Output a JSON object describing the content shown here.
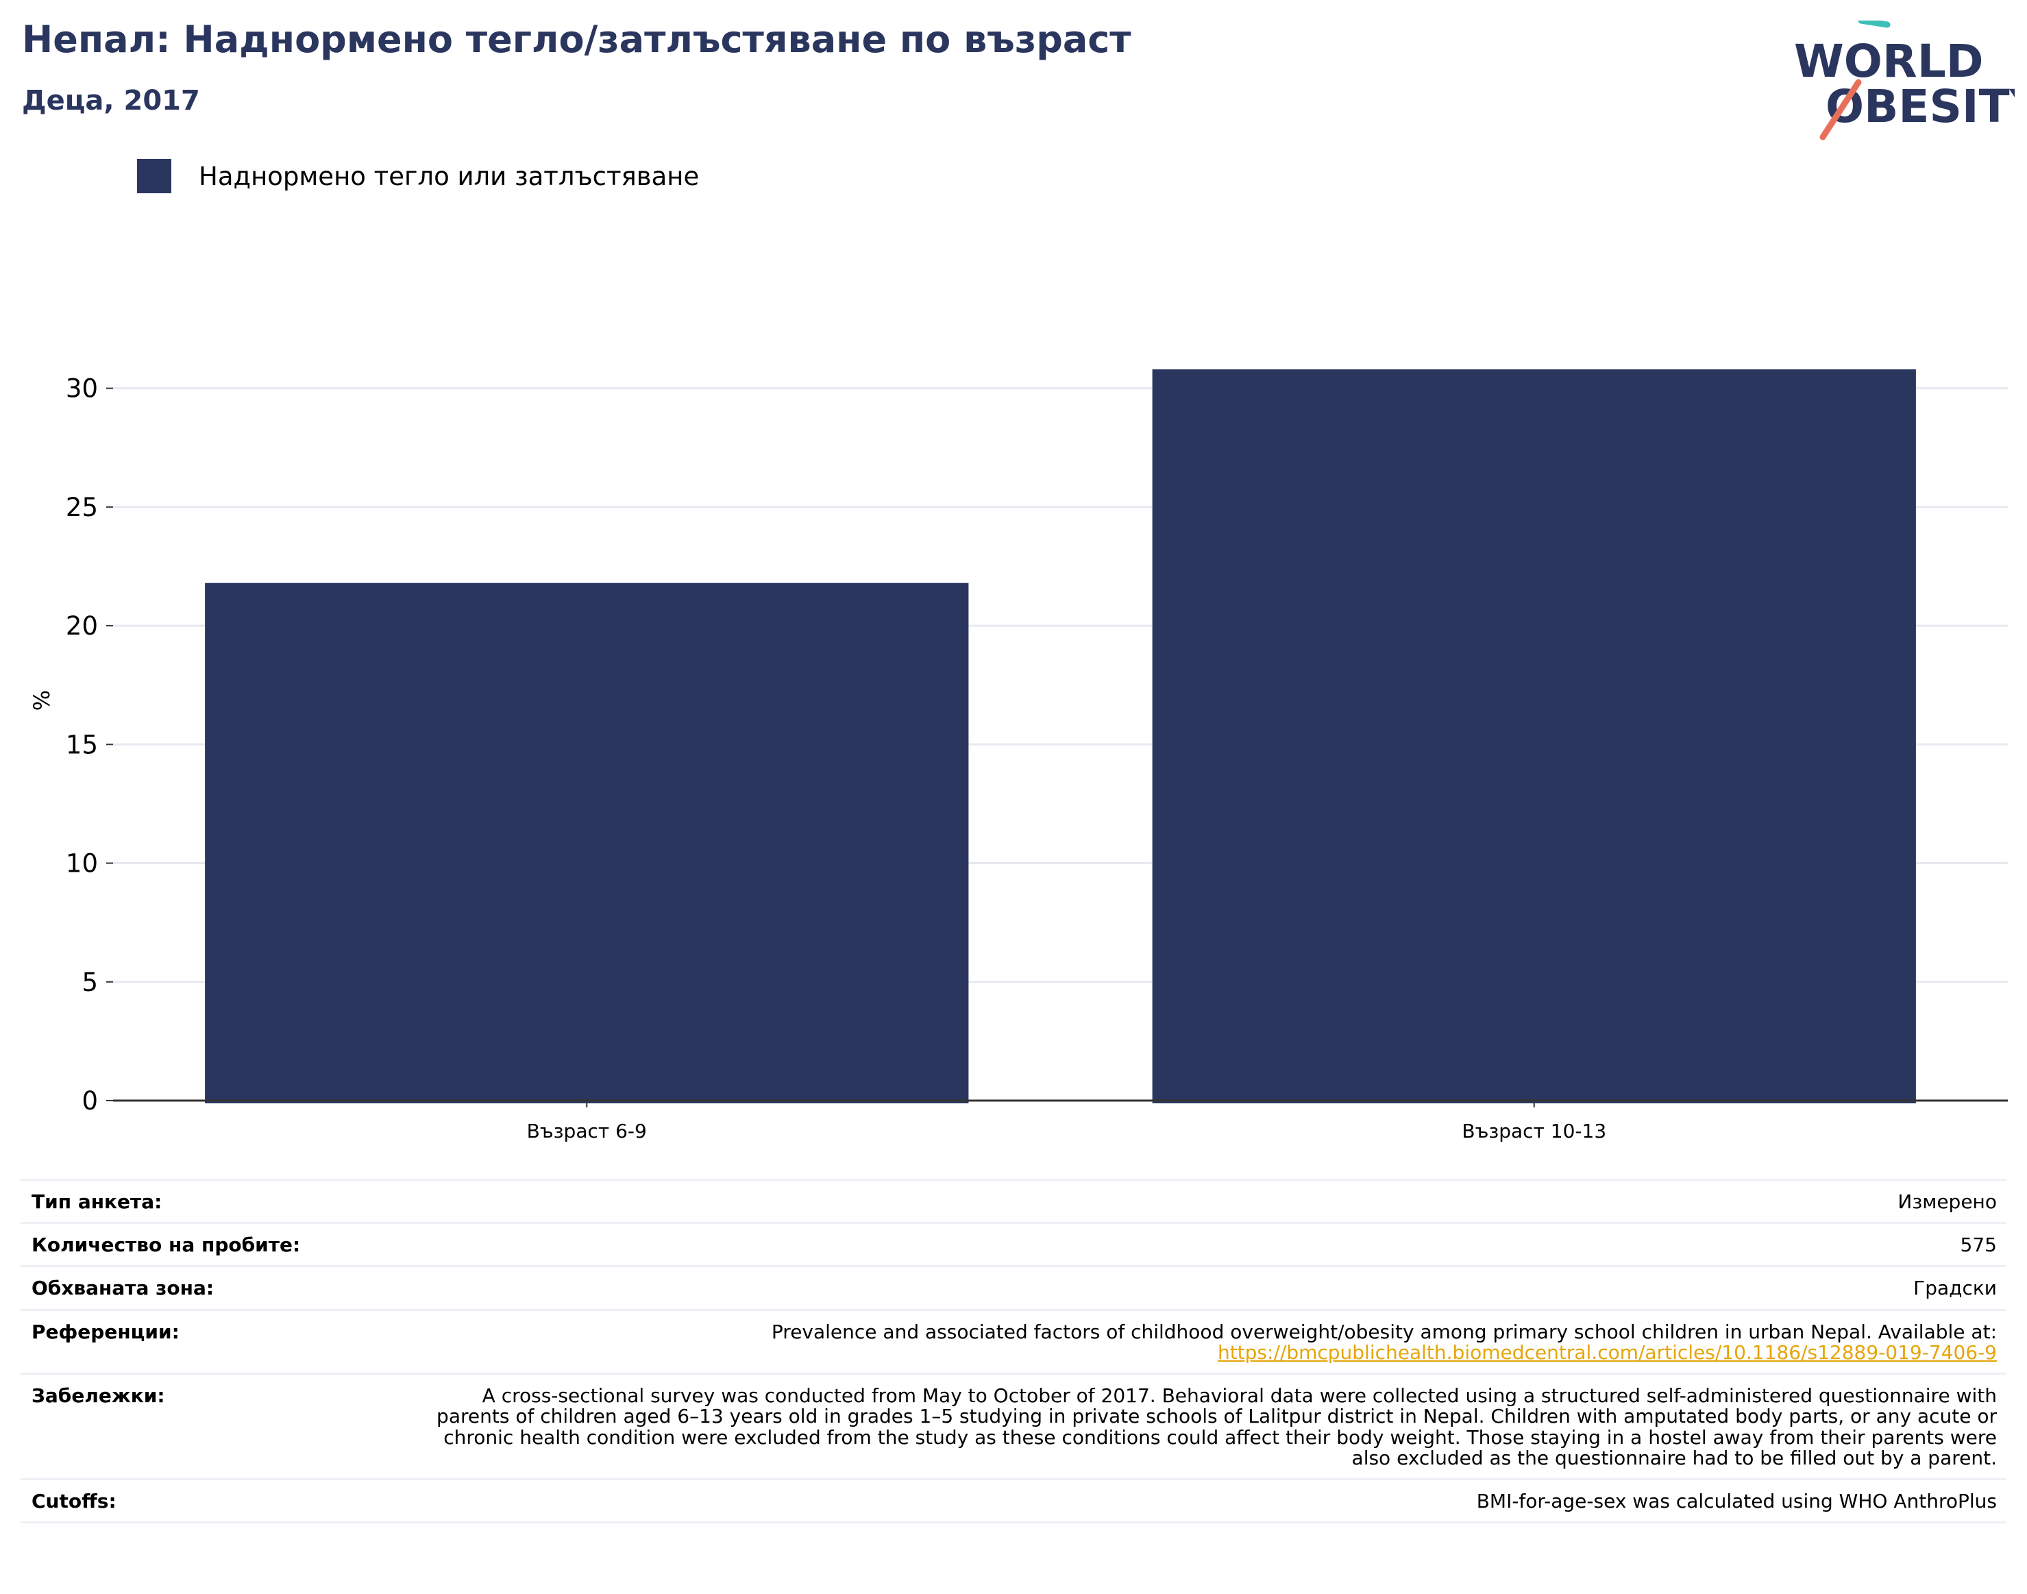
{
  "header": {
    "title": "Непал: Наднормено тегло/затлъстяване по възраст",
    "subtitle": "Деца, 2017"
  },
  "logo": {
    "line1": "WORLD",
    "line2": "OBESITY",
    "text_color": "#2b365f",
    "slash_top_color": "#3dbfb8",
    "slash_bottom_color": "#e8705a"
  },
  "legend": {
    "label": "Наднормено тегло или затлъстяване",
    "color": "#2b365f"
  },
  "chart_data": {
    "type": "bar",
    "categories": [
      "Възраст 6-9",
      "Възраст 10-13"
    ],
    "series": [
      {
        "name": "Наднормено тегло или затлъстяване",
        "values": [
          21.8,
          30.8
        ]
      }
    ],
    "ylabel": "%",
    "xlabel": "",
    "ylim": [
      0,
      32.5
    ],
    "yticks": [
      0,
      5,
      10,
      15,
      20,
      25,
      30
    ],
    "grid": true,
    "legend_position": "top-left",
    "bar_color": "#2b365f"
  },
  "metadata": [
    {
      "key": "Тип анкета:",
      "value": "Измерено"
    },
    {
      "key": "Количество на пробите:",
      "value": "575"
    },
    {
      "key": "Обхваната зона:",
      "value": "Градски"
    },
    {
      "key": "Референции:",
      "value": "Prevalence and associated factors of childhood overweight/obesity among primary school children in urban Nepal. Available at:",
      "link": "https://bmcpublichealth.biomedcentral.com/articles/10.1186/s12889-019-7406-9"
    },
    {
      "key": "Забележки:",
      "value": "A cross-sectional survey was conducted from May to October of 2017. Behavioral data were collected using a structured self-administered questionnaire with parents of children aged 6–13 years old in grades 1–5 studying in private schools of Lalitpur district in Nepal. Children with amputated body parts, or any acute or chronic health condition were excluded from the study as these conditions could affect their body weight. Those staying in a hostel away from their parents were also excluded as the questionnaire had to be filled out by a parent."
    },
    {
      "key": "Cutoffs:",
      "value": "BMI-for-age-sex was calculated using WHO AnthroPlus"
    }
  ]
}
